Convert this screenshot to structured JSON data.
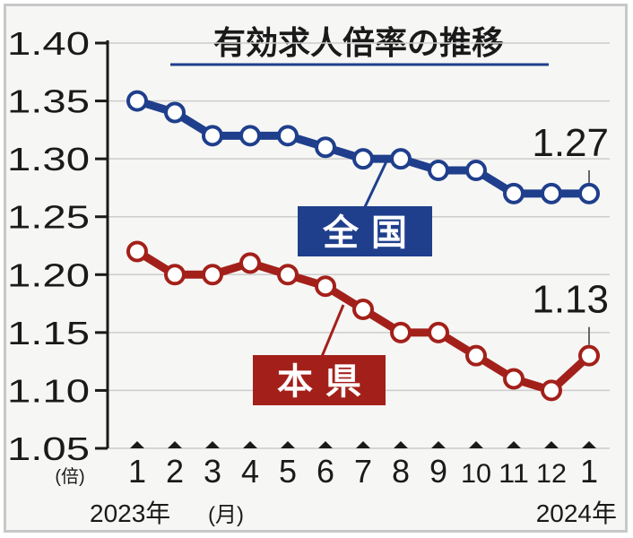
{
  "chart_data": {
    "type": "line",
    "title": "有効求人倍率の推移",
    "ylabel": "(倍)",
    "xlabel": "(月)",
    "ylim": [
      1.05,
      1.4
    ],
    "yticks": [
      "1.40",
      "1.35",
      "1.30",
      "1.25",
      "1.20",
      "1.15",
      "1.10",
      "1.05"
    ],
    "categories": [
      "1",
      "2",
      "3",
      "4",
      "5",
      "6",
      "7",
      "8",
      "9",
      "10",
      "11",
      "12",
      "1"
    ],
    "year_start": "2023年",
    "year_end": "2024年",
    "series": [
      {
        "name": "全 国",
        "color": "#1f3f8c",
        "values": [
          1.35,
          1.34,
          1.32,
          1.32,
          1.32,
          1.31,
          1.3,
          1.3,
          1.29,
          1.29,
          1.27,
          1.27,
          1.27
        ],
        "end_label": "1.27"
      },
      {
        "name": "本 県",
        "color": "#a3201a",
        "values": [
          1.22,
          1.2,
          1.2,
          1.21,
          1.2,
          1.19,
          1.17,
          1.15,
          1.15,
          1.13,
          1.11,
          1.1,
          1.13
        ],
        "end_label": "1.13"
      }
    ]
  }
}
